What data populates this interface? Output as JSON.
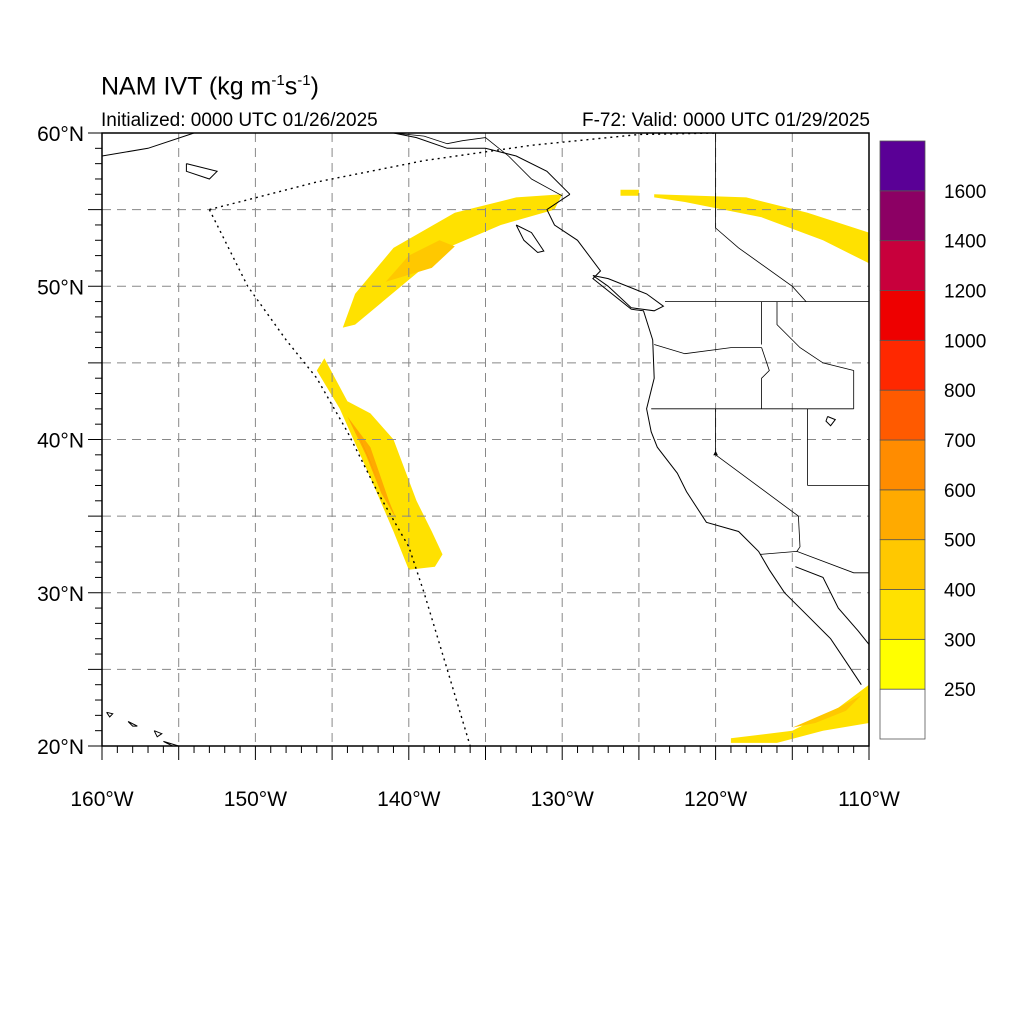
{
  "title": {
    "prefix": "NAM IVT (kg m",
    "sup1": "-1",
    "mid": "s",
    "sup2": "-1",
    "suffix": ")"
  },
  "initialized": "Initialized: 0000 UTC 01/26/2025",
  "valid": "F-72: Valid: 0000 UTC 01/29/2025",
  "map": {
    "lon_range": [
      -160,
      -110
    ],
    "lat_range": [
      20,
      60
    ],
    "grid_lon_step": 5,
    "grid_lat_step": 5,
    "gridlines": true,
    "lat_tick_labels": [
      "60°N",
      "50°N",
      "40°N",
      "30°N",
      "20°N"
    ],
    "lon_tick_labels": [
      "160°W",
      "150°W",
      "140°W",
      "130°W",
      "120°W",
      "110°W"
    ]
  },
  "colorbar": {
    "placement": "right",
    "labels": [
      "250",
      "300",
      "400",
      "500",
      "600",
      "700",
      "800",
      "1000",
      "1200",
      "1400",
      "1600"
    ],
    "colors": [
      "#ffffff",
      "#ffff00",
      "#ffe100",
      "#ffc800",
      "#ffaa00",
      "#ff8c00",
      "#ff5a00",
      "#ff2800",
      "#ee0000",
      "#c8003c",
      "#8c0064",
      "#5a0096"
    ]
  },
  "ivt_features": [
    {
      "name": "Gulf of Alaska plume",
      "color": "#ffe100",
      "poly": [
        [
          -144.3,
          47.3
        ],
        [
          -143.5,
          49.5
        ],
        [
          -141,
          52.5
        ],
        [
          -137,
          54.8
        ],
        [
          -133,
          55.8
        ],
        [
          -130,
          56
        ],
        [
          -130.5,
          55
        ],
        [
          -134,
          54
        ],
        [
          -137.5,
          52.5
        ],
        [
          -140.5,
          50
        ],
        [
          -143.5,
          47.5
        ]
      ]
    },
    {
      "name": "Gulf of Alaska core",
      "color": "#ffc800",
      "poly": [
        [
          -141.5,
          50.3
        ],
        [
          -140,
          52
        ],
        [
          -138,
          53
        ],
        [
          -137,
          52.6
        ],
        [
          -138.5,
          51.2
        ]
      ]
    },
    {
      "name": "Offshore California band",
      "color": "#ffe100",
      "poly": [
        [
          -145.5,
          45.3
        ],
        [
          -144,
          42.5
        ],
        [
          -142.5,
          41.7
        ],
        [
          -141,
          40
        ],
        [
          -139.5,
          36
        ],
        [
          -138.5,
          34
        ],
        [
          -137.8,
          32.5
        ],
        [
          -138.3,
          31.7
        ],
        [
          -140,
          31.5
        ],
        [
          -141,
          34
        ],
        [
          -142.5,
          37.5
        ],
        [
          -144.5,
          42
        ],
        [
          -146,
          44.5
        ]
      ]
    },
    {
      "name": "Offshore California core",
      "color": "#ffaa00",
      "poly": [
        [
          -144,
          41.5
        ],
        [
          -142.5,
          39.5
        ],
        [
          -141.3,
          36
        ],
        [
          -140.8,
          34.8
        ],
        [
          -141.8,
          36.5
        ],
        [
          -142.8,
          39
        ]
      ]
    },
    {
      "name": "Offshore California inner core",
      "color": "#ff8c00",
      "poly": [
        [
          -143.5,
          40.8
        ],
        [
          -142.5,
          38.5
        ],
        [
          -141.7,
          36.5
        ],
        [
          -142.6,
          38.8
        ]
      ]
    },
    {
      "name": "Canada band",
      "color": "#ffe100",
      "poly": [
        [
          -124,
          56
        ],
        [
          -118,
          55.8
        ],
        [
          -114,
          54.8
        ],
        [
          -110,
          53.5
        ],
        [
          -110,
          51.5
        ],
        [
          -113,
          53
        ],
        [
          -117,
          54.5
        ],
        [
          -122,
          55.5
        ],
        [
          -124,
          55.8
        ]
      ]
    },
    {
      "name": "Canada band small",
      "color": "#ffe100",
      "poly": [
        [
          -126.2,
          56.3
        ],
        [
          -125,
          56.3
        ],
        [
          -125,
          55.9
        ],
        [
          -126.2,
          55.9
        ]
      ]
    },
    {
      "name": "Subtropical band",
      "color": "#ffe100",
      "poly": [
        [
          -119,
          20.5
        ],
        [
          -115,
          21
        ],
        [
          -112,
          22.5
        ],
        [
          -110,
          24
        ],
        [
          -110,
          21.5
        ],
        [
          -113,
          21
        ],
        [
          -116,
          20.2
        ],
        [
          -119,
          20.2
        ]
      ]
    },
    {
      "name": "Subtropical core",
      "color": "#ffc800",
      "poly": [
        [
          -115,
          21.2
        ],
        [
          -112,
          22.5
        ],
        [
          -110.5,
          23.3
        ],
        [
          -111.5,
          22.3
        ],
        [
          -113.5,
          21.5
        ]
      ]
    }
  ],
  "coastlines": [
    {
      "name": "North America west coast",
      "line": [
        [
          -129.5,
          56
        ],
        [
          -131,
          55
        ],
        [
          -130.5,
          54
        ],
        [
          -129,
          53
        ],
        [
          -127.5,
          51
        ],
        [
          -128,
          50.5
        ],
        [
          -125.5,
          48.5
        ],
        [
          -124.7,
          48.4
        ],
        [
          -124.1,
          46.5
        ],
        [
          -124,
          44
        ],
        [
          -124.5,
          42
        ],
        [
          -124.2,
          40.5
        ],
        [
          -123.8,
          39.5
        ],
        [
          -122.5,
          37.8
        ],
        [
          -121.9,
          36.6
        ],
        [
          -120.6,
          34.6
        ],
        [
          -118.5,
          34
        ],
        [
          -117.2,
          32.7
        ],
        [
          -116.5,
          31.5
        ],
        [
          -115.5,
          30
        ],
        [
          -114,
          28.5
        ],
        [
          -112.5,
          27
        ],
        [
          -111.5,
          25.5
        ],
        [
          -110.5,
          24
        ]
      ]
    },
    {
      "name": "Alaska panhandle coast",
      "line": [
        [
          -129.5,
          56
        ],
        [
          -131,
          57.5
        ],
        [
          -133,
          58.5
        ],
        [
          -135,
          59
        ],
        [
          -137.5,
          59
        ],
        [
          -139.5,
          59.7
        ],
        [
          -141,
          60
        ]
      ]
    },
    {
      "name": "Gulf of California east coast",
      "line": [
        [
          -114.8,
          31.7
        ],
        [
          -113,
          31
        ],
        [
          -112,
          29
        ],
        [
          -110.7,
          27.5
        ],
        [
          -109.5,
          26
        ],
        [
          -108.5,
          25.3
        ]
      ]
    },
    {
      "name": "Alaska Peninsula coast",
      "line": [
        [
          -160,
          58.5
        ],
        [
          -157,
          59
        ],
        [
          -154,
          60
        ]
      ]
    },
    {
      "name": "Vancouver Island",
      "line": [
        [
          -128,
          50.7
        ],
        [
          -127,
          50
        ],
        [
          -125.5,
          48.6
        ],
        [
          -124,
          48.4
        ],
        [
          -123.4,
          48.7
        ],
        [
          -124.5,
          49.5
        ],
        [
          -127,
          50.5
        ],
        [
          -128,
          50.7
        ]
      ]
    },
    {
      "name": "Haida Gwaii",
      "line": [
        [
          -133,
          54
        ],
        [
          -132,
          53.5
        ],
        [
          -131.2,
          52.3
        ],
        [
          -131.6,
          52.2
        ],
        [
          -132.5,
          53
        ],
        [
          -133,
          54
        ]
      ]
    },
    {
      "name": "Kodiak Island",
      "line": [
        [
          -154.5,
          58
        ],
        [
          -152.5,
          57.5
        ],
        [
          -153,
          57
        ],
        [
          -154.5,
          57.5
        ],
        [
          -154.5,
          58
        ]
      ]
    },
    {
      "name": "Hawaii Big Island",
      "line": [
        [
          -156,
          20.3
        ],
        [
          -155,
          19.8
        ],
        [
          -155,
          20
        ],
        [
          -156,
          20.3
        ]
      ]
    },
    {
      "name": "Maui",
      "line": [
        [
          -156.6,
          21
        ],
        [
          -156.1,
          20.8
        ],
        [
          -156.4,
          20.6
        ],
        [
          -156.6,
          21
        ]
      ]
    },
    {
      "name": "Oahu",
      "line": [
        [
          -158.3,
          21.6
        ],
        [
          -157.7,
          21.3
        ],
        [
          -158,
          21.3
        ],
        [
          -158.3,
          21.6
        ]
      ]
    },
    {
      "name": "Kauai",
      "line": [
        [
          -159.7,
          22.2
        ],
        [
          -159.3,
          22.1
        ],
        [
          -159.5,
          21.9
        ],
        [
          -159.7,
          22.2
        ]
      ]
    }
  ],
  "borders": [
    {
      "name": "US-Canada border",
      "line": [
        [
          -123.3,
          49
        ],
        [
          -110,
          49
        ]
      ]
    },
    {
      "name": "US-Mexico border",
      "line": [
        [
          -117.1,
          32.5
        ],
        [
          -114.7,
          32.7
        ],
        [
          -111,
          31.3
        ],
        [
          -110,
          31.3
        ]
      ]
    },
    {
      "name": "Oregon-Washington",
      "line": [
        [
          -124,
          46.2
        ],
        [
          -122,
          45.6
        ],
        [
          -119,
          46
        ],
        [
          -117,
          46
        ]
      ]
    },
    {
      "name": "Idaho-Washington",
      "line": [
        [
          -117,
          49
        ],
        [
          -117,
          46.2
        ]
      ]
    },
    {
      "name": "Oregon-Idaho",
      "line": [
        [
          -117,
          46
        ],
        [
          -116.5,
          44.5
        ],
        [
          -117,
          44
        ],
        [
          -117,
          42
        ]
      ]
    },
    {
      "name": "California-Oregon-Nevada 42N",
      "line": [
        [
          -124.2,
          42
        ],
        [
          -111,
          42
        ]
      ]
    },
    {
      "name": "California-Nevada",
      "line": [
        [
          -120,
          42
        ],
        [
          -120,
          39
        ],
        [
          -114.6,
          35
        ]
      ]
    },
    {
      "name": "Nevada-Utah",
      "line": [
        [
          -114,
          42
        ],
        [
          -114,
          37
        ]
      ]
    },
    {
      "name": "Arizona-Utah",
      "line": [
        [
          -114,
          37
        ],
        [
          -110,
          37
        ]
      ]
    },
    {
      "name": "California-Arizona",
      "line": [
        [
          -114.6,
          35
        ],
        [
          -114.5,
          33
        ],
        [
          -114.7,
          32.7
        ]
      ]
    },
    {
      "name": "Montana-Idaho",
      "line": [
        [
          -116,
          49
        ],
        [
          -116,
          47.5
        ],
        [
          -114.5,
          46
        ],
        [
          -113,
          45
        ],
        [
          -111,
          44.5
        ]
      ]
    },
    {
      "name": "Idaho-Wyoming",
      "line": [
        [
          -111,
          44.5
        ],
        [
          -111,
          42
        ]
      ]
    },
    {
      "name": "Alaska-Canada border",
      "line": [
        [
          -141,
          60
        ],
        [
          -139,
          59.8
        ],
        [
          -137.5,
          59.3
        ],
        [
          -136.5,
          59.5
        ],
        [
          -135,
          59.7
        ],
        [
          -133.5,
          58.5
        ],
        [
          -132,
          57
        ],
        [
          -130,
          55.9
        ]
      ]
    },
    {
      "name": "Alberta-BC",
      "line": [
        [
          -120,
          60
        ],
        [
          -120,
          53.8
        ],
        [
          -118.5,
          52.5
        ],
        [
          -115,
          50
        ],
        [
          -114.1,
          49
        ]
      ]
    },
    {
      "name": "Canada provincial line",
      "line": [
        [
          -110,
          60
        ],
        [
          -110,
          49
        ]
      ]
    }
  ],
  "domain_outline": [
    [
      -153,
      55
    ],
    [
      -146,
      56.8
    ],
    [
      -139,
      58.2
    ],
    [
      -132,
      59.2
    ],
    [
      -125,
      59.9
    ],
    [
      -120,
      60
    ]
  ],
  "domain_outline_west": [
    [
      -153,
      55
    ],
    [
      -150.5,
      50
    ],
    [
      -148,
      46.5
    ],
    [
      -146,
      44
    ],
    [
      -144,
      40.5
    ],
    [
      -142,
      36.5
    ],
    [
      -140,
      33
    ],
    [
      -139,
      30
    ],
    [
      -137.5,
      25
    ],
    [
      -136,
      20
    ]
  ],
  "lakes": [
    {
      "name": "Great Salt Lake",
      "line": [
        [
          -112.7,
          41.5
        ],
        [
          -112.2,
          41.3
        ],
        [
          -112.5,
          40.9
        ],
        [
          -112.8,
          41.2
        ],
        [
          -112.7,
          41.5
        ]
      ]
    },
    {
      "name": "Lake Tahoe",
      "line": [
        [
          -120,
          39.2
        ],
        [
          -119.9,
          39
        ],
        [
          -120.1,
          39
        ],
        [
          -120,
          39.2
        ]
      ]
    }
  ]
}
